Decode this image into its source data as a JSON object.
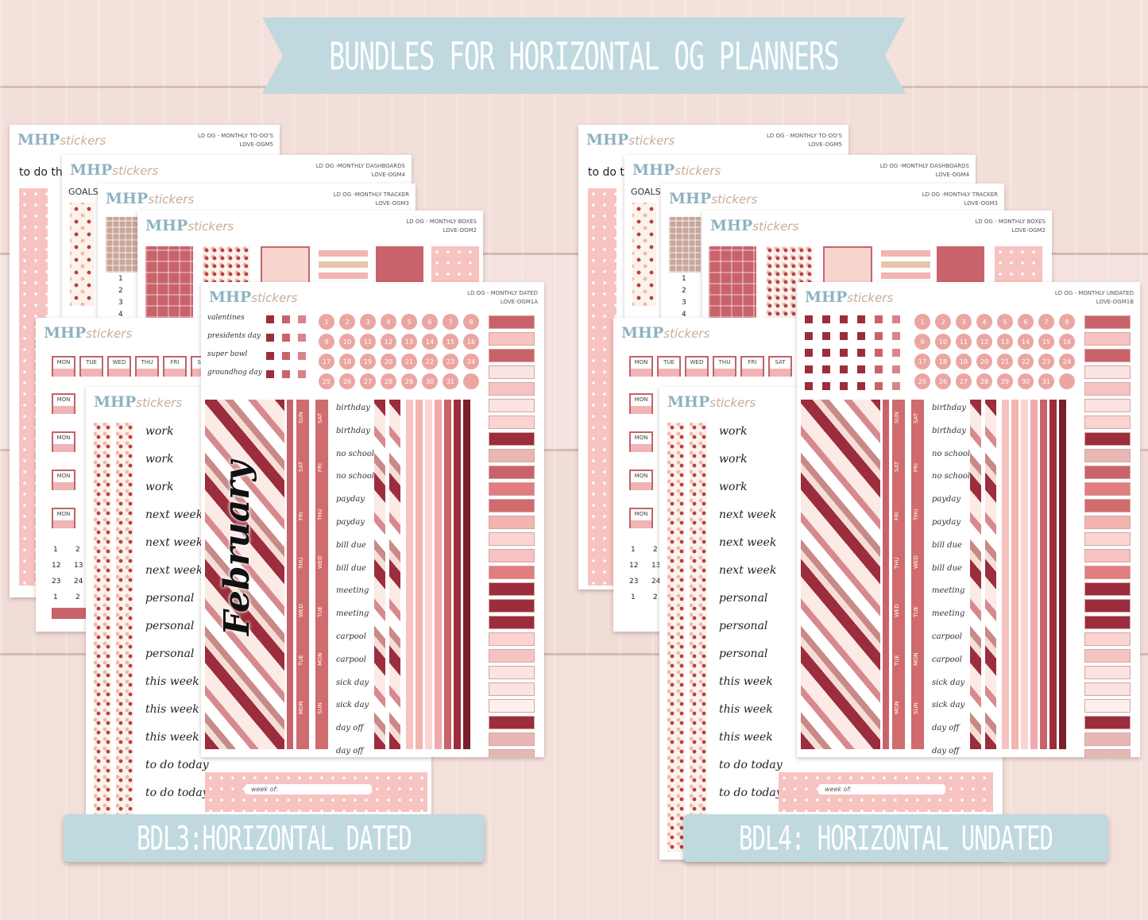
{
  "banner": {
    "title": "BUNDLES FOR HORIZONTAL OG PLANNERS"
  },
  "brand": {
    "mhp": "MHP",
    "stickers": "stickers"
  },
  "colors": {
    "banner": "#bfd9df",
    "rose": "#d06b6e",
    "burgundy": "#9b2d3c",
    "pink": "#eba6a2"
  },
  "sheets": {
    "todos": {
      "line1": "LD OG - MONTHLY TO-DO'S",
      "line2": "LOVE-OGM5",
      "label": "to do th"
    },
    "dash": {
      "line1": "LD OG -MONTHLY DASHBOARDS",
      "line2": "LOVE-OGM4",
      "label": "GOALS"
    },
    "tracker": {
      "line1": "LD OG -MONTHLY TRACKER",
      "line2": "LOVE-OGM3"
    },
    "boxes": {
      "line1": "LD OG - MONTHLY BOXES",
      "line2": "LOVE-OGM2"
    },
    "dated": {
      "line1": "LD OG - MONTHLY DATED",
      "line2": "LOVE-OGM1A"
    },
    "undated": {
      "line1": "LD OG - MONTHLY UNDATED",
      "line2": "LOVE-OGM1B"
    }
  },
  "events": [
    "valentines",
    "presidents day",
    "super bowl",
    "groundhog day"
  ],
  "numbers": [
    "1",
    "2",
    "3",
    "4",
    "5",
    "6",
    "7",
    "8",
    "9",
    "10",
    "11",
    "12",
    "13",
    "14",
    "15",
    "16",
    "17",
    "18",
    "19",
    "20",
    "21",
    "22",
    "23",
    "24",
    "25",
    "26",
    "27",
    "28",
    "29",
    "30",
    "31",
    ""
  ],
  "weekdays_tabs": [
    "MON",
    "TUE",
    "WED",
    "THU",
    "FRI",
    "SAT"
  ],
  "day_strips": {
    "a": [
      "SUN",
      "SAT",
      "FRI",
      "THU",
      "WED",
      "TUE",
      "MON"
    ],
    "b": [
      "SAT",
      "FRI",
      "THU",
      "WED",
      "TUE",
      "MON",
      "SUN"
    ]
  },
  "script_words": [
    "birthday",
    "birthday",
    "no school",
    "no school",
    "payday",
    "payday",
    "bill due",
    "bill due",
    "meeting",
    "meeting",
    "carpool",
    "carpool",
    "sick day",
    "sick day",
    "day off",
    "day off"
  ],
  "weekly_words": [
    "work",
    "work",
    "work",
    "next week",
    "next week",
    "next week",
    "personal",
    "personal",
    "personal",
    "this week",
    "this week",
    "this week",
    "to do today",
    "to do today"
  ],
  "month_name": "February",
  "week_of": "week of:",
  "small_nums": {
    "list": [
      "1",
      "2",
      "3",
      "4"
    ],
    "grid": [
      "1",
      "2",
      "12",
      "13",
      "23",
      "24",
      "1",
      "2"
    ]
  },
  "bundles": {
    "left": "BDL3:HORIZONTAL DATED",
    "right": "BDL4: HORIZONTAL UNDATED"
  }
}
